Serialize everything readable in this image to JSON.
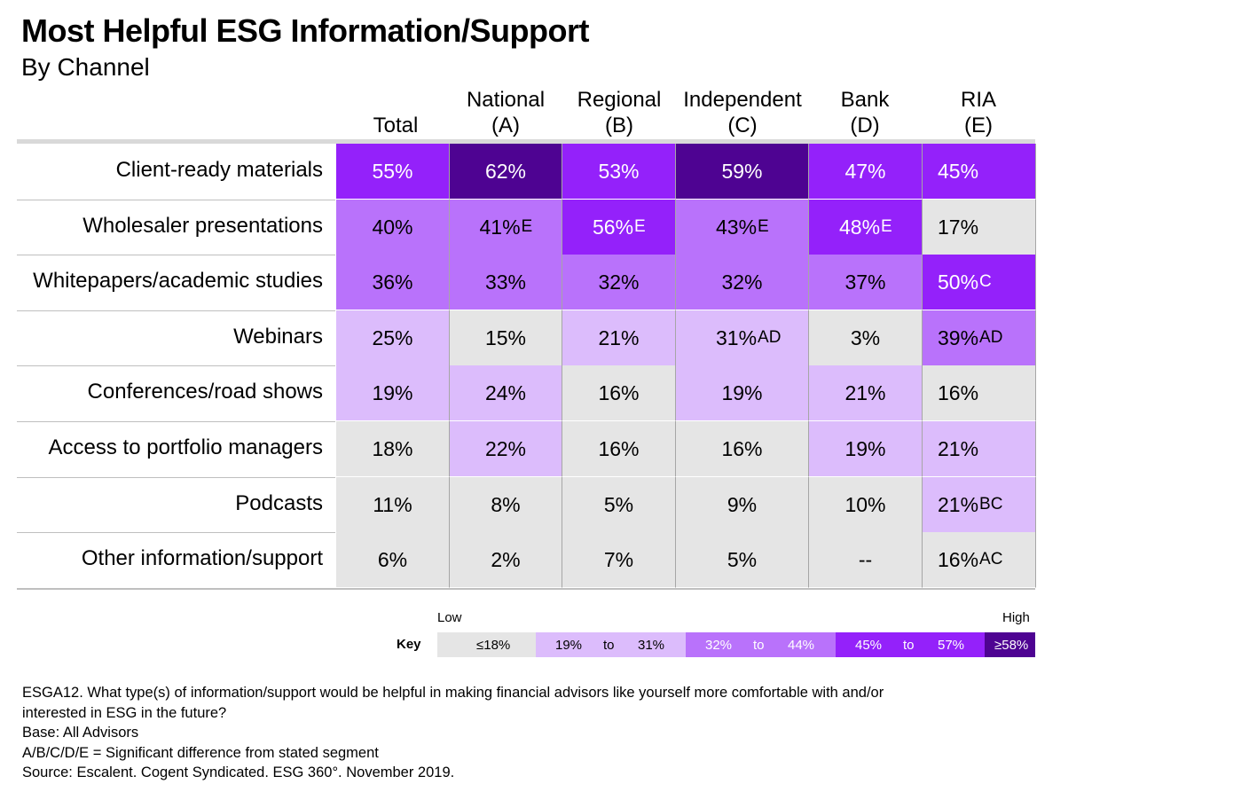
{
  "title": "Most Helpful ESG Information/Support",
  "subtitle": "By Channel",
  "chart_data": {
    "type": "table",
    "columns": [
      {
        "line1": "",
        "line2": "Total"
      },
      {
        "line1": "National",
        "line2": "(A)"
      },
      {
        "line1": "Regional",
        "line2": "(B)"
      },
      {
        "line1": "Independent",
        "line2": "(C)"
      },
      {
        "line1": "Bank",
        "line2": "(D)"
      },
      {
        "line1": "RIA",
        "line2": "(E)"
      }
    ],
    "rows": [
      {
        "label": "Client-ready materials",
        "cells": [
          {
            "value": "55%",
            "sig": ""
          },
          {
            "value": "62%",
            "sig": ""
          },
          {
            "value": "53%",
            "sig": ""
          },
          {
            "value": "59%",
            "sig": ""
          },
          {
            "value": "47%",
            "sig": ""
          },
          {
            "value": "45%",
            "sig": ""
          }
        ]
      },
      {
        "label": "Wholesaler presentations",
        "cells": [
          {
            "value": "40%",
            "sig": ""
          },
          {
            "value": "41%",
            "sig": "E"
          },
          {
            "value": "56%",
            "sig": "E"
          },
          {
            "value": "43%",
            "sig": "E"
          },
          {
            "value": "48%",
            "sig": "E"
          },
          {
            "value": "17%",
            "sig": ""
          }
        ]
      },
      {
        "label": "Whitepapers/academic studies",
        "cells": [
          {
            "value": "36%",
            "sig": ""
          },
          {
            "value": "33%",
            "sig": ""
          },
          {
            "value": "32%",
            "sig": ""
          },
          {
            "value": "32%",
            "sig": ""
          },
          {
            "value": "37%",
            "sig": ""
          },
          {
            "value": "50%",
            "sig": "C"
          }
        ]
      },
      {
        "label": "Webinars",
        "cells": [
          {
            "value": "25%",
            "sig": ""
          },
          {
            "value": "15%",
            "sig": ""
          },
          {
            "value": "21%",
            "sig": ""
          },
          {
            "value": "31%",
            "sig": "AD"
          },
          {
            "value": "3%",
            "sig": ""
          },
          {
            "value": "39%",
            "sig": "AD"
          }
        ]
      },
      {
        "label": "Conferences/road shows",
        "cells": [
          {
            "value": "19%",
            "sig": ""
          },
          {
            "value": "24%",
            "sig": ""
          },
          {
            "value": "16%",
            "sig": ""
          },
          {
            "value": "19%",
            "sig": ""
          },
          {
            "value": "21%",
            "sig": ""
          },
          {
            "value": "16%",
            "sig": ""
          }
        ]
      },
      {
        "label": "Access to portfolio managers",
        "cells": [
          {
            "value": "18%",
            "sig": ""
          },
          {
            "value": "22%",
            "sig": ""
          },
          {
            "value": "16%",
            "sig": ""
          },
          {
            "value": "16%",
            "sig": ""
          },
          {
            "value": "19%",
            "sig": ""
          },
          {
            "value": "21%",
            "sig": ""
          }
        ]
      },
      {
        "label": "Podcasts",
        "cells": [
          {
            "value": "11%",
            "sig": ""
          },
          {
            "value": "8%",
            "sig": ""
          },
          {
            "value": "5%",
            "sig": ""
          },
          {
            "value": "9%",
            "sig": ""
          },
          {
            "value": "10%",
            "sig": ""
          },
          {
            "value": "21%",
            "sig": "BC"
          }
        ]
      },
      {
        "label": "Other information/support",
        "cells": [
          {
            "value": "6%",
            "sig": ""
          },
          {
            "value": "2%",
            "sig": ""
          },
          {
            "value": "7%",
            "sig": ""
          },
          {
            "value": "5%",
            "sig": ""
          },
          {
            "value": "--",
            "sig": ""
          },
          {
            "value": "16%",
            "sig": "AC"
          }
        ]
      }
    ],
    "color_scale": {
      "low": "#e5e5e5",
      "mid_low": "#dcbcfc",
      "mid": "#b972fb",
      "high": "#9421fa",
      "top": "#4e0392"
    }
  },
  "key": {
    "low_label": "Low",
    "high_label": "High",
    "label": "Key",
    "segments": [
      {
        "from": "≤18%",
        "to_word": "",
        "to": "",
        "color": "#e5e5e5"
      },
      {
        "from": "19%",
        "to_word": "to",
        "to": "31%",
        "color": "#dcbcfc"
      },
      {
        "from": "32%",
        "to_word": "to",
        "to": "44%",
        "color": "#b972fb"
      },
      {
        "from": "45%",
        "to_word": "to",
        "to": "57%",
        "color": "#9421fa"
      },
      {
        "from": "≥58%",
        "to_word": "",
        "to": "",
        "color": "#4e0392"
      }
    ]
  },
  "footnotes": [
    "ESGA12. What type(s) of information/support would be helpful in making financial advisors like yourself more comfortable with and/or",
    "interested in ESG in the future?",
    "Base: All Advisors",
    "A/B/C/D/E = Significant difference from stated segment",
    "Source: Escalent. Cogent Syndicated. ESG 360°. November 2019."
  ]
}
